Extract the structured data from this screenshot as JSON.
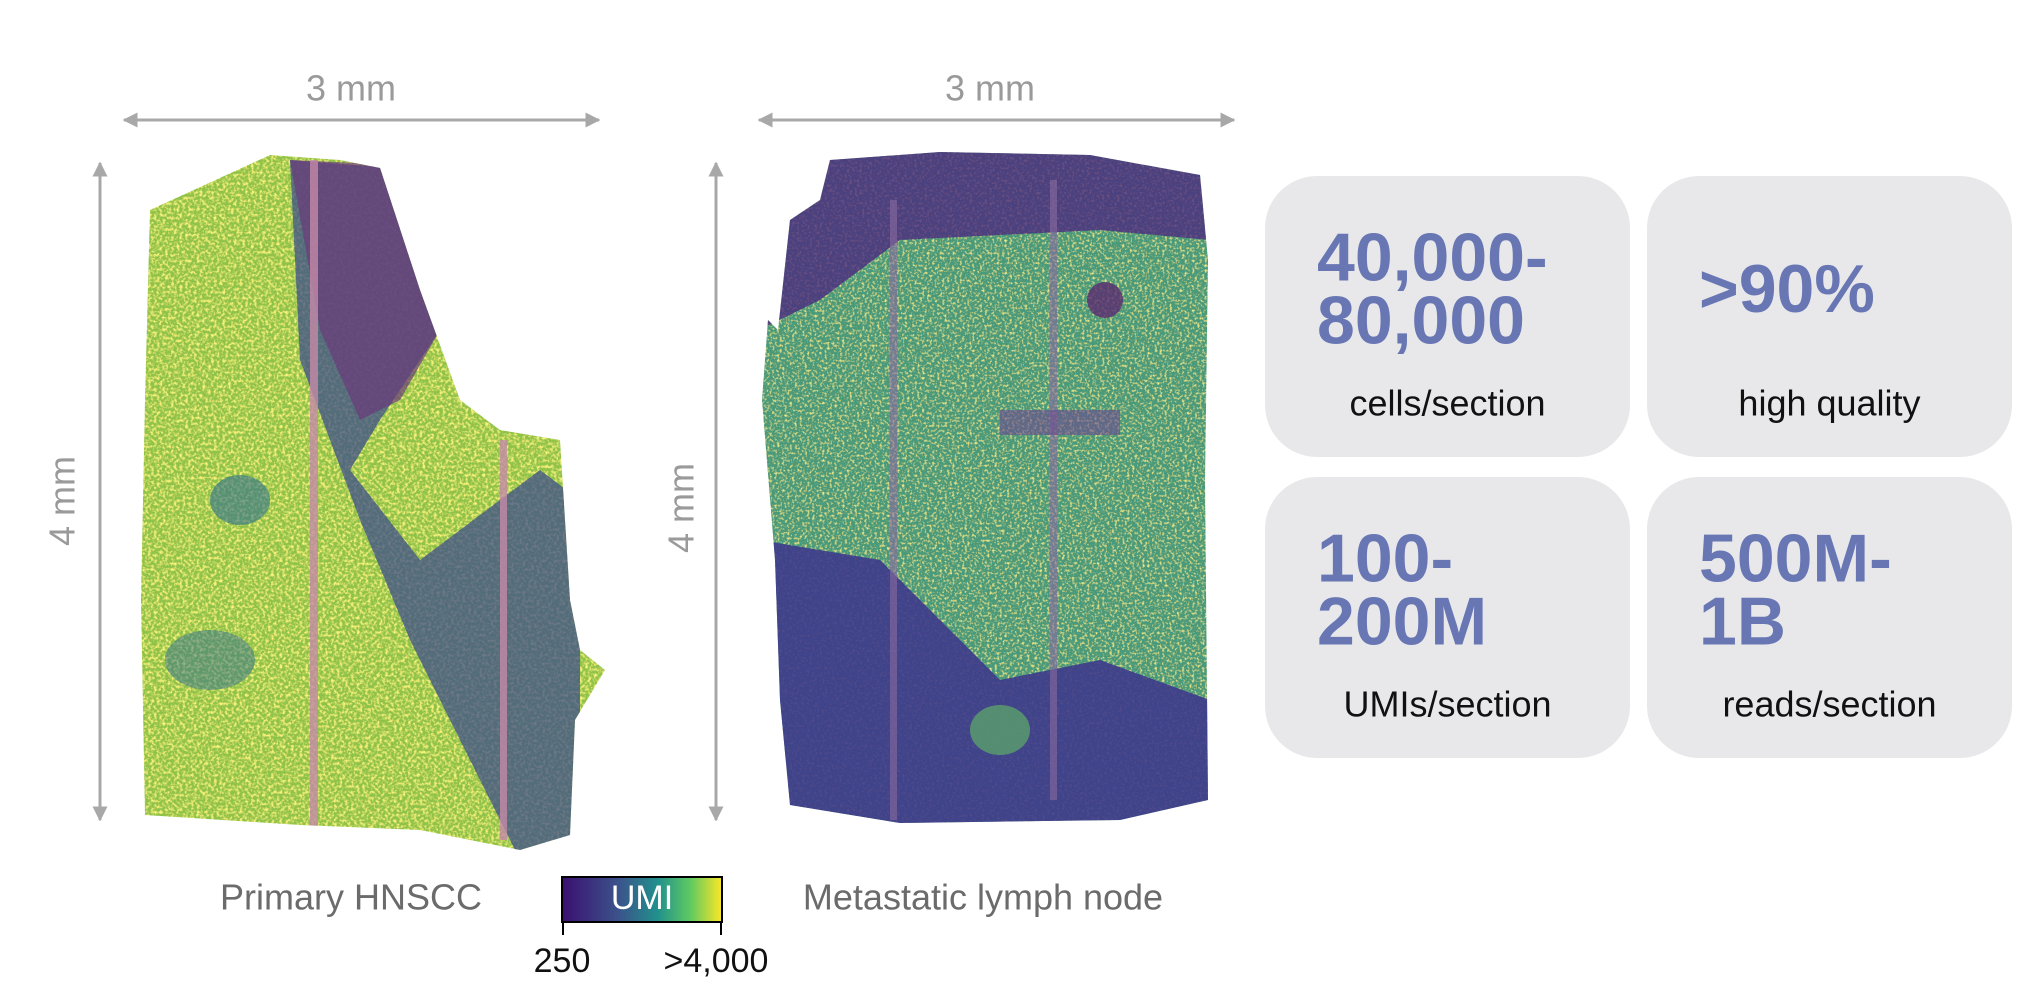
{
  "panels": [
    {
      "width_label": "3 mm",
      "height_label": "4 mm",
      "caption": "Primary HNSCC"
    },
    {
      "width_label": "3 mm",
      "height_label": "4 mm",
      "caption": "Metastatic lymph node"
    }
  ],
  "colorbar": {
    "title": "UMI",
    "min_label": "250",
    "max_label": ">4,000"
  },
  "stats": [
    {
      "value_lines": [
        "40,000-",
        "80,000"
      ],
      "label": "cells/section"
    },
    {
      "value_lines": [
        ">90%"
      ],
      "label": "high quality"
    },
    {
      "value_lines": [
        "100-",
        "200M"
      ],
      "label": "UMIs/section"
    },
    {
      "value_lines": [
        "500M-",
        "1B"
      ],
      "label": "reads/section"
    }
  ]
}
